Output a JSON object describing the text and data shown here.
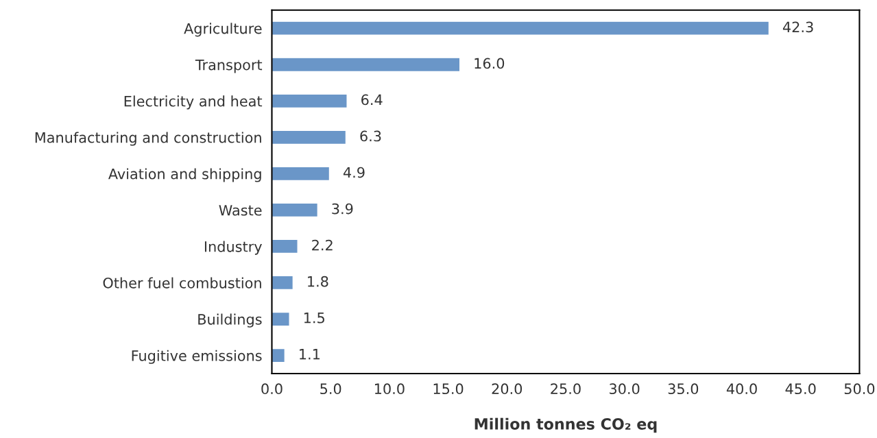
{
  "chart_data": {
    "type": "bar",
    "orientation": "horizontal",
    "categories": [
      "Agriculture",
      "Transport",
      "Electricity and heat",
      "Manufacturing and construction",
      "Aviation and shipping",
      "Waste",
      "Industry",
      "Other fuel combustion",
      "Buildings",
      "Fugitive emissions"
    ],
    "values": [
      42.3,
      16.0,
      6.4,
      6.3,
      4.9,
      3.9,
      2.2,
      1.8,
      1.5,
      1.1
    ],
    "value_labels": [
      "42.3",
      "16.0",
      "6.4",
      "6.3",
      "4.9",
      "3.9",
      "2.2",
      "1.8",
      "1.5",
      "1.1"
    ],
    "color": "#6a96c8",
    "xlabel": "Million tonnes CO₂ eq",
    "xlim": [
      0,
      50
    ],
    "xticks": [
      {
        "value": 0,
        "label": "0.0"
      },
      {
        "value": 5,
        "label": "5.0"
      },
      {
        "value": 10,
        "label": "10.0"
      },
      {
        "value": 15,
        "label": "15.0"
      },
      {
        "value": 20,
        "label": "20.0"
      },
      {
        "value": 25,
        "label": "25.0"
      },
      {
        "value": 30,
        "label": "30.0"
      },
      {
        "value": 35,
        "label": "35.0"
      },
      {
        "value": 40,
        "label": "40.0"
      },
      {
        "value": 45,
        "label": "45.0"
      },
      {
        "value": 50,
        "label": "50.0"
      }
    ],
    "grid": false,
    "legend": false
  }
}
